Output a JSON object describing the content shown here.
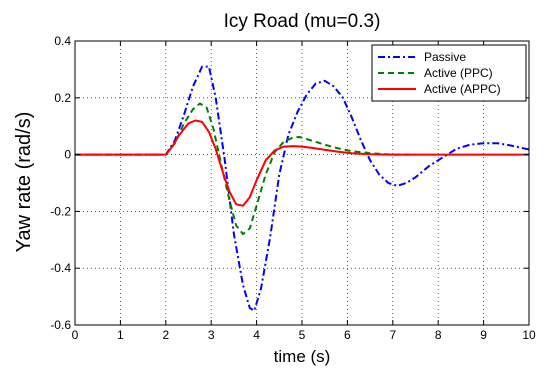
{
  "chart_data": {
    "type": "line",
    "title": "Icy Road (mu=0.3)",
    "xlabel": "time (s)",
    "ylabel": "Yaw rate (rad/s)",
    "xlim": [
      0,
      10
    ],
    "ylim": [
      -0.6,
      0.4
    ],
    "xticks": [
      "0",
      "1",
      "2",
      "3",
      "4",
      "5",
      "6",
      "7",
      "8",
      "9",
      "10"
    ],
    "yticks": [
      "-0.6",
      "-0.4",
      "-0.2",
      "0",
      "0.2",
      "0.4"
    ],
    "grid": true,
    "legend_position": "top-right",
    "series": [
      {
        "name": "Passive",
        "color": "#0000ff",
        "style": "dashdot",
        "x": [
          0,
          2.0,
          2.2,
          2.4,
          2.6,
          2.8,
          2.95,
          3.1,
          3.3,
          3.5,
          3.7,
          3.85,
          3.95,
          4.1,
          4.3,
          4.5,
          4.7,
          4.9,
          5.1,
          5.3,
          5.5,
          5.7,
          5.9,
          6.1,
          6.3,
          6.5,
          6.7,
          6.9,
          7.1,
          7.3,
          7.5,
          7.8,
          8.1,
          8.4,
          8.7,
          9.0,
          9.3,
          9.6,
          10.0
        ],
        "y": [
          0,
          0,
          0.05,
          0.14,
          0.24,
          0.31,
          0.31,
          0.2,
          -0.02,
          -0.28,
          -0.46,
          -0.54,
          -0.55,
          -0.47,
          -0.29,
          -0.07,
          0.07,
          0.15,
          0.21,
          0.25,
          0.26,
          0.24,
          0.2,
          0.13,
          0.05,
          -0.02,
          -0.07,
          -0.1,
          -0.11,
          -0.1,
          -0.08,
          -0.04,
          -0.01,
          0.02,
          0.035,
          0.04,
          0.04,
          0.032,
          0.018
        ]
      },
      {
        "name": "Active (PPC)",
        "color": "#008000",
        "style": "dashed",
        "x": [
          0,
          2.0,
          2.2,
          2.4,
          2.6,
          2.75,
          2.9,
          3.05,
          3.2,
          3.4,
          3.55,
          3.7,
          3.85,
          4.0,
          4.2,
          4.4,
          4.6,
          4.8,
          4.95,
          5.1,
          5.3,
          5.5,
          5.8,
          6.1,
          6.5,
          7.0,
          7.5
        ],
        "y": [
          0,
          0,
          0.04,
          0.11,
          0.16,
          0.18,
          0.165,
          0.09,
          -0.02,
          -0.16,
          -0.25,
          -0.28,
          -0.26,
          -0.18,
          -0.07,
          0.01,
          0.045,
          0.06,
          0.062,
          0.055,
          0.045,
          0.035,
          0.022,
          0.012,
          0.005,
          0.0,
          0.0
        ]
      },
      {
        "name": "Active (APPC)",
        "color": "#ff0000",
        "style": "solid",
        "x": [
          0,
          2.0,
          2.15,
          2.3,
          2.5,
          2.65,
          2.8,
          2.95,
          3.1,
          3.25,
          3.4,
          3.55,
          3.7,
          3.85,
          4.0,
          4.2,
          4.4,
          4.6,
          4.8,
          5.0,
          5.2,
          5.5,
          5.8,
          6.1,
          6.5,
          7.0,
          10.0
        ],
        "y": [
          0,
          0,
          0.03,
          0.07,
          0.11,
          0.12,
          0.115,
          0.08,
          0.02,
          -0.06,
          -0.13,
          -0.175,
          -0.18,
          -0.15,
          -0.09,
          -0.02,
          0.015,
          0.028,
          0.03,
          0.028,
          0.024,
          0.017,
          0.01,
          0.005,
          0.001,
          0,
          0
        ]
      }
    ]
  }
}
